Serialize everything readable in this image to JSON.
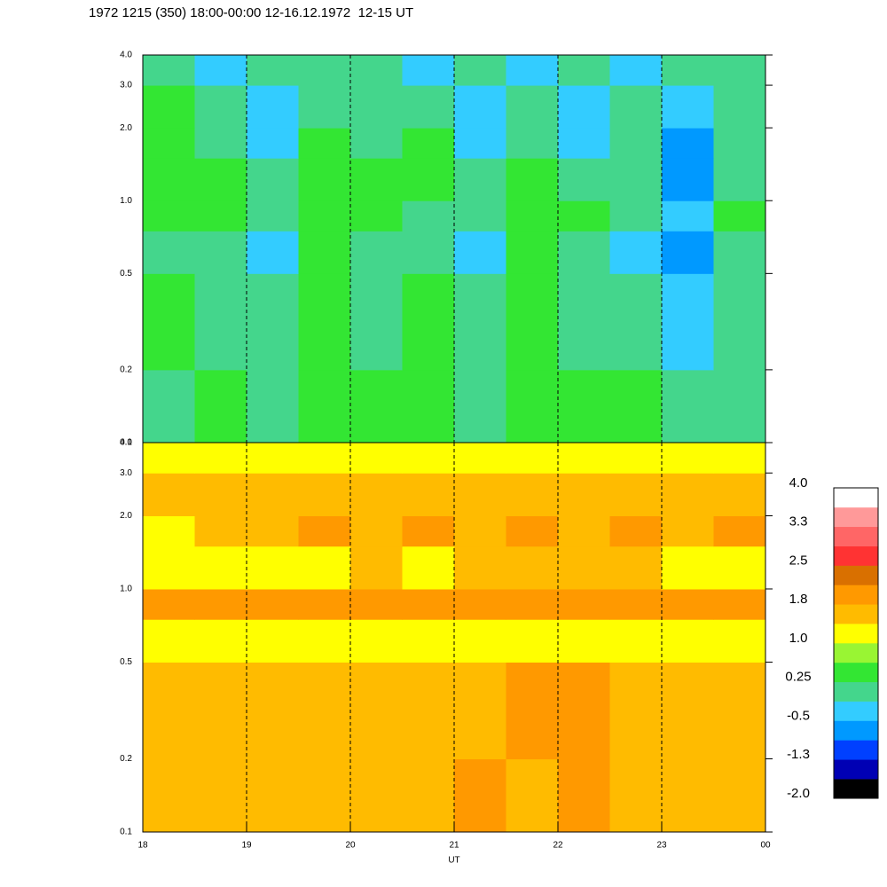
{
  "chart_data": {
    "type": "spectrogram",
    "title": "1972 1215 (350) 18:00-00:00 12-16.12.1972  12-15 UT",
    "xlabel": "UT",
    "xlim": [
      18,
      24
    ],
    "xticks": [
      18,
      19,
      20,
      21,
      22,
      23,
      {
        "value": 24,
        "label": "00"
      }
    ],
    "ylim": [
      0.1,
      4
    ],
    "log_y": true,
    "yticks": [
      0.1,
      0.2,
      0.5,
      {
        "value": 1,
        "label": "1.0"
      },
      {
        "value": 2,
        "label": "2.0"
      },
      {
        "value": 3,
        "label": "3.0"
      },
      {
        "value": 4,
        "label": "4.0"
      }
    ],
    "grid": true,
    "xedges": [
      18,
      18.5,
      19,
      19.5,
      20,
      20.5,
      21,
      21.5,
      22,
      22.5,
      23,
      23.5,
      24
    ],
    "yedges": [
      0.1,
      0.2,
      0.5,
      0.75,
      1,
      1.5,
      2,
      3,
      4
    ],
    "panels": [
      {
        "z": [
          [
            0.2,
            0.3,
            0.1,
            0.3,
            0.4,
            0.3,
            0.2,
            0.3,
            0.4,
            0.3,
            0.2,
            0.1
          ],
          [
            0.3,
            0.2,
            0.1,
            0.4,
            0.2,
            0.3,
            0.1,
            0.6,
            0.2,
            0.1,
            -0.3,
            0.1
          ],
          [
            0.1,
            0.0,
            -0.2,
            0.3,
            0.1,
            0.0,
            -0.2,
            0.5,
            0.0,
            -0.2,
            -0.6,
            0.0
          ],
          [
            0.4,
            0.3,
            0.2,
            0.4,
            0.3,
            0.2,
            0.1,
            0.5,
            0.3,
            0.1,
            -0.4,
            0.3
          ],
          [
            0.5,
            0.3,
            0.2,
            0.6,
            0.3,
            0.4,
            0.2,
            0.3,
            0.2,
            0.1,
            -0.6,
            0.2
          ],
          [
            0.5,
            0.2,
            -0.3,
            0.4,
            0.2,
            0.3,
            -0.4,
            0.1,
            -0.2,
            0.2,
            -0.7,
            0.2
          ],
          [
            0.3,
            0.0,
            -0.4,
            0.1,
            0.0,
            0.0,
            -0.3,
            0.0,
            -0.3,
            0.0,
            -0.4,
            0.1
          ],
          [
            0.1,
            -0.2,
            -0.1,
            0.0,
            -0.1,
            -0.2,
            -0.1,
            -0.2,
            -0.1,
            -0.2,
            -0.1,
            0.0
          ]
        ]
      },
      {
        "z": [
          [
            1.6,
            1.5,
            1.6,
            1.7,
            1.6,
            1.6,
            1.8,
            1.7,
            1.9,
            1.7,
            1.6,
            1.5
          ],
          [
            1.6,
            1.7,
            1.6,
            1.7,
            1.7,
            1.6,
            1.7,
            1.8,
            1.8,
            1.7,
            1.6,
            1.5
          ],
          [
            1.2,
            1.1,
            1.2,
            1.3,
            1.2,
            1.3,
            1.2,
            1.3,
            1.2,
            1.3,
            1.2,
            1.1
          ],
          [
            1.9,
            1.9,
            2.0,
            2.0,
            2.0,
            2.0,
            2.0,
            2.0,
            2.0,
            2.0,
            2.0,
            1.9
          ],
          [
            1.3,
            1.2,
            1.3,
            1.2,
            1.4,
            1.3,
            1.4,
            1.4,
            1.5,
            1.4,
            1.3,
            1.3
          ],
          [
            1.3,
            1.4,
            1.4,
            1.8,
            1.6,
            1.8,
            1.7,
            1.8,
            1.4,
            1.8,
            1.7,
            1.8
          ],
          [
            1.5,
            1.5,
            1.6,
            1.5,
            1.6,
            1.5,
            1.6,
            1.5,
            1.6,
            1.5,
            1.6,
            1.6
          ],
          [
            1.1,
            1.2,
            1.1,
            1.2,
            1.1,
            1.2,
            1.1,
            1.2,
            1.1,
            1.2,
            1.1,
            1.2
          ]
        ]
      }
    ],
    "colorbar": {
      "clim": [
        -2,
        4
      ],
      "colors": [
        "#000000",
        "#0000b4",
        "#0040ff",
        "#0099ff",
        "#33ccff",
        "#44d68c",
        "#33e633",
        "#99f533",
        "#ffff00",
        "#ffbb00",
        "#ff9900",
        "#d97000",
        "#ff3333",
        "#ff6666",
        "#ff9999",
        "#ffffff"
      ],
      "ticks": [
        {
          "value": 4,
          "label": "4.0"
        },
        {
          "value": 3.25,
          "label": "3.3"
        },
        2.5,
        {
          "value": 1.75,
          "label": "1.8"
        },
        {
          "value": 1,
          "label": "1.0"
        },
        0.25,
        -0.5,
        {
          "value": -1.25,
          "label": "-1.3"
        },
        {
          "value": -2,
          "label": "-2.0"
        }
      ]
    }
  }
}
